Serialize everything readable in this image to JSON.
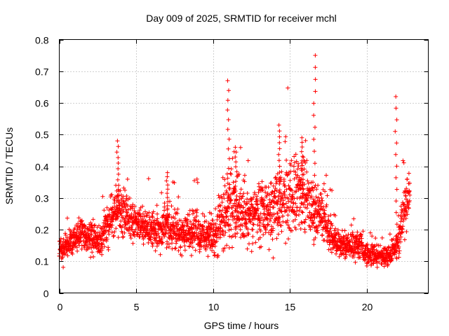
{
  "chart_data": {
    "type": "scatter",
    "title": "Day 009 of 2025, SRMTID for receiver mchl",
    "xlabel": "GPS time / hours",
    "ylabel": "SRMTID / TECUs",
    "xlim": [
      0,
      24
    ],
    "ylim": [
      0,
      0.8
    ],
    "x_ticks": [
      0,
      5,
      10,
      15,
      20
    ],
    "x_tick_labels": [
      "0",
      "5",
      "10",
      "15",
      "20"
    ],
    "y_ticks": [
      0,
      0.1,
      0.2,
      0.3,
      0.4,
      0.5,
      0.6,
      0.7,
      0.8
    ],
    "y_tick_labels": [
      "0",
      "0.1",
      "0.2",
      "0.3",
      "0.4",
      "0.5",
      "0.6",
      "0.7",
      "0.8"
    ],
    "grid": true,
    "marker": "+",
    "series_color": "#ff0000",
    "profile": {
      "hours": [
        0,
        0.5,
        1,
        1.5,
        2,
        2.5,
        3,
        3.5,
        4,
        4.5,
        5,
        5.5,
        6,
        6.5,
        7,
        7.5,
        8,
        8.5,
        9,
        9.5,
        10,
        10.5,
        11,
        11.5,
        12,
        12.5,
        13,
        13.5,
        14,
        14.5,
        15,
        15.5,
        16,
        16.5,
        17,
        17.5,
        18,
        18.5,
        19,
        19.5,
        20,
        20.5,
        21,
        21.5,
        22,
        22.5,
        22.8
      ],
      "median": [
        0.14,
        0.15,
        0.17,
        0.19,
        0.18,
        0.16,
        0.2,
        0.24,
        0.26,
        0.25,
        0.22,
        0.21,
        0.2,
        0.2,
        0.21,
        0.2,
        0.19,
        0.2,
        0.19,
        0.18,
        0.18,
        0.22,
        0.27,
        0.26,
        0.25,
        0.24,
        0.26,
        0.25,
        0.27,
        0.3,
        0.3,
        0.3,
        0.3,
        0.26,
        0.25,
        0.2,
        0.16,
        0.15,
        0.15,
        0.15,
        0.12,
        0.12,
        0.11,
        0.12,
        0.15,
        0.28,
        0.32
      ],
      "spread": [
        0.04,
        0.04,
        0.04,
        0.05,
        0.05,
        0.05,
        0.06,
        0.07,
        0.08,
        0.07,
        0.06,
        0.05,
        0.05,
        0.06,
        0.06,
        0.06,
        0.06,
        0.06,
        0.06,
        0.06,
        0.06,
        0.09,
        0.12,
        0.1,
        0.09,
        0.09,
        0.09,
        0.09,
        0.11,
        0.11,
        0.11,
        0.11,
        0.12,
        0.1,
        0.08,
        0.06,
        0.04,
        0.04,
        0.04,
        0.04,
        0.03,
        0.03,
        0.03,
        0.03,
        0.04,
        0.08,
        0.07
      ]
    },
    "spikes": [
      {
        "x": 3.8,
        "y": 0.48
      },
      {
        "x": 7.0,
        "y": 0.38
      },
      {
        "x": 11.0,
        "y": 0.67
      },
      {
        "x": 11.5,
        "y": 0.46
      },
      {
        "x": 14.3,
        "y": 0.53
      },
      {
        "x": 15.8,
        "y": 0.49
      },
      {
        "x": 16.6,
        "y": 0.75
      },
      {
        "x": 21.9,
        "y": 0.62
      }
    ],
    "point_count": 2600,
    "random_seed": 9
  }
}
